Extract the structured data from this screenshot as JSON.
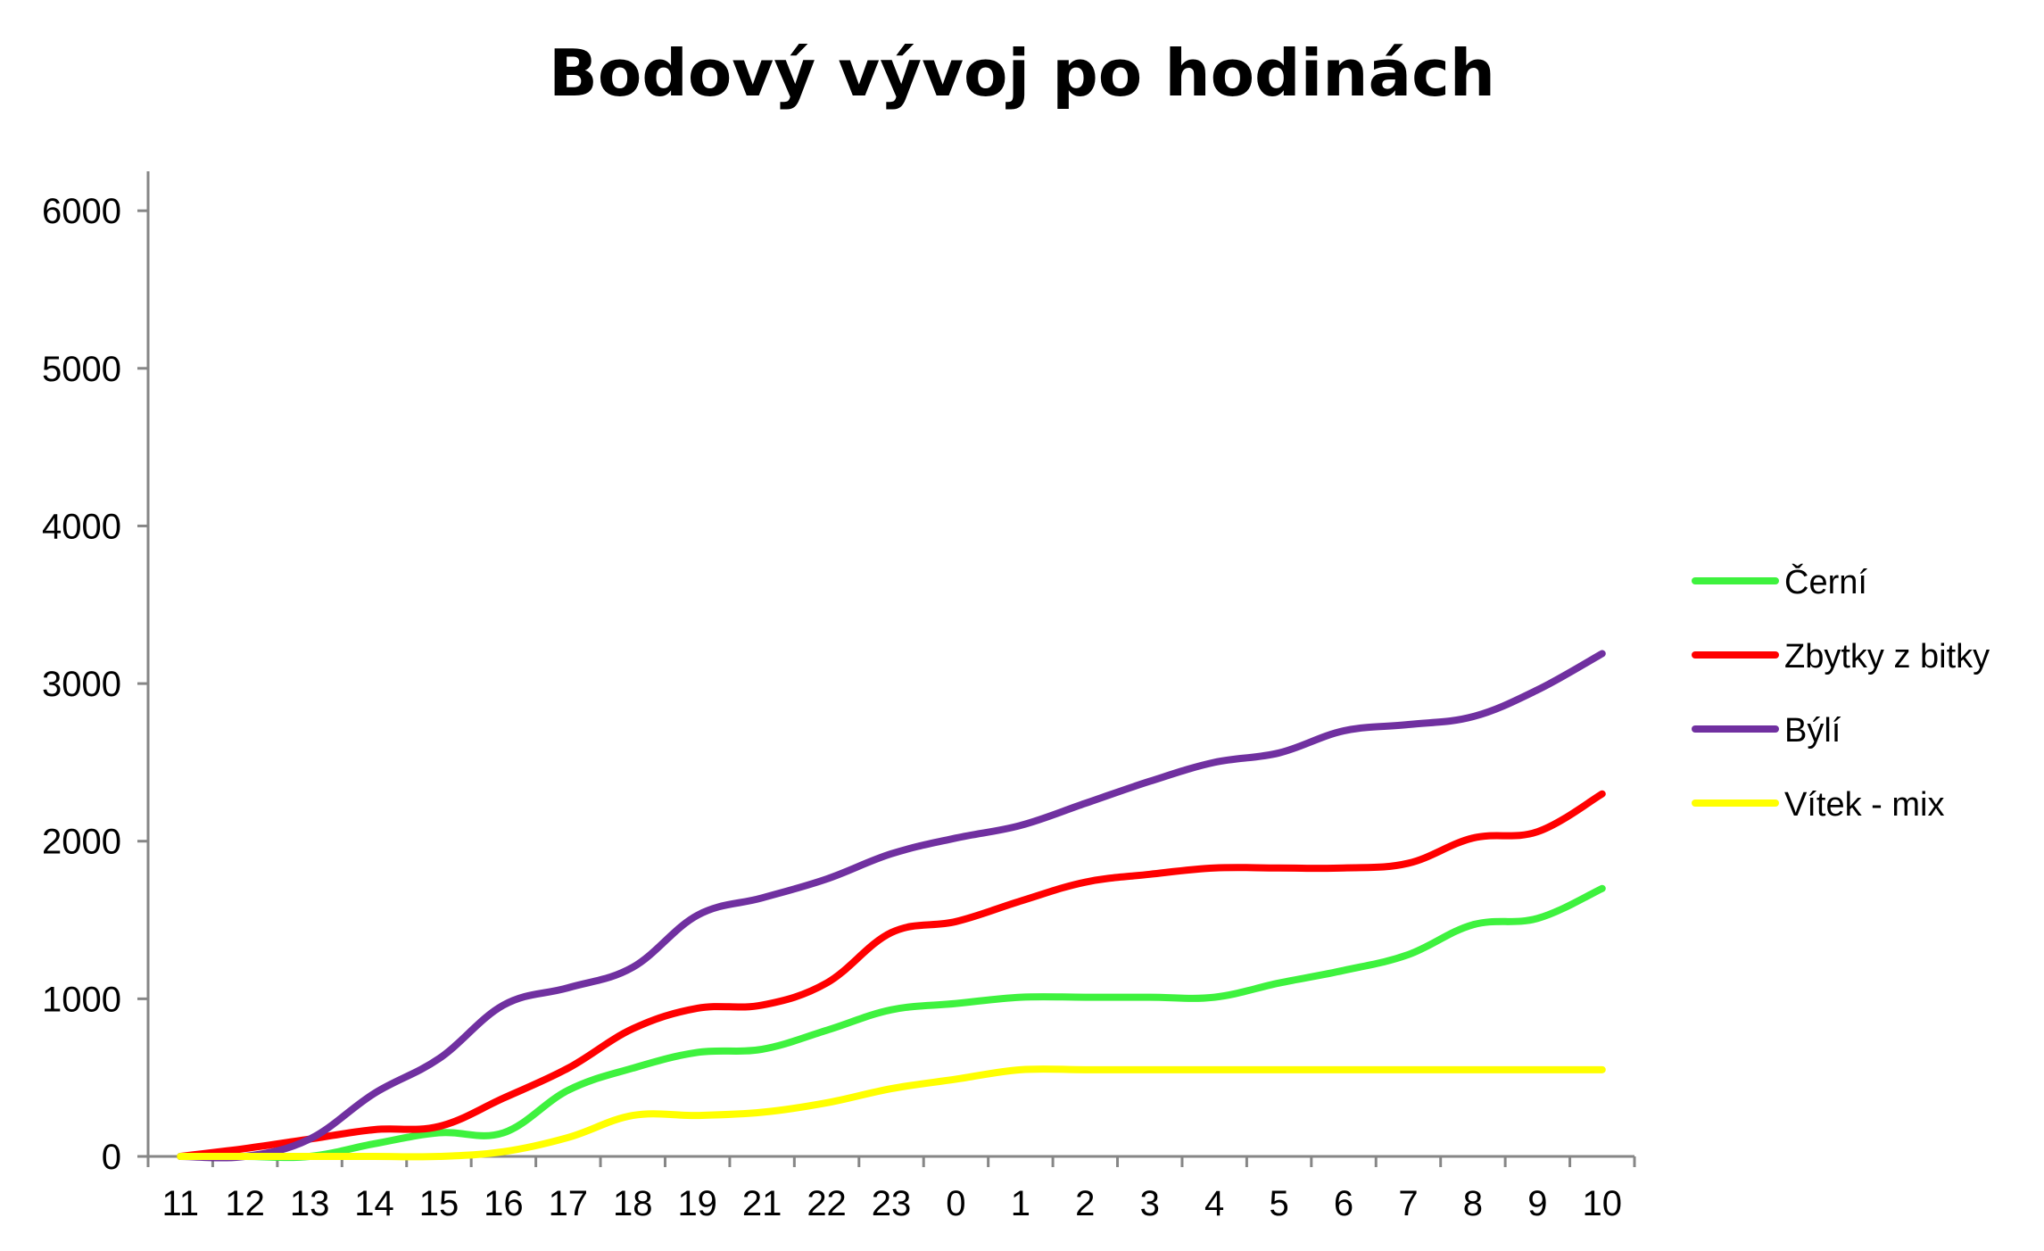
{
  "chart_data": {
    "type": "line",
    "title": "Bodový vývoj po hodinách",
    "xlabel": "",
    "ylabel": "",
    "categories": [
      "11",
      "12",
      "13",
      "14",
      "15",
      "16",
      "17",
      "18",
      "19",
      "21",
      "22",
      "23",
      "0",
      "1",
      "2",
      "3",
      "4",
      "5",
      "6",
      "7",
      "8",
      "9",
      "10"
    ],
    "ylim": [
      0,
      6250
    ],
    "yticks": [
      0,
      1000,
      2000,
      3000,
      4000,
      5000,
      6000
    ],
    "grid": false,
    "legend_position": "right",
    "series": [
      {
        "name": "Černí",
        "color": "#3ef23e",
        "values": [
          0,
          0,
          0,
          80,
          150,
          150,
          420,
          560,
          660,
          680,
          800,
          930,
          970,
          1010,
          1010,
          1010,
          1010,
          1100,
          1180,
          1280,
          1470,
          1510,
          1700
        ]
      },
      {
        "name": "Zbytky z bitky",
        "color": "#ff0000",
        "values": [
          0,
          50,
          110,
          170,
          190,
          370,
          560,
          810,
          940,
          960,
          1100,
          1420,
          1490,
          1620,
          1740,
          1790,
          1830,
          1830,
          1830,
          1860,
          2020,
          2060,
          2300
        ]
      },
      {
        "name": "Býlí",
        "color": "#7030a0",
        "values": [
          0,
          0,
          110,
          400,
          620,
          960,
          1070,
          1200,
          1530,
          1640,
          1760,
          1920,
          2020,
          2100,
          2240,
          2380,
          2500,
          2560,
          2700,
          2740,
          2790,
          2960,
          3190
        ]
      },
      {
        "name": "Vítek - mix",
        "color": "#ffff00",
        "values": [
          0,
          0,
          0,
          0,
          0,
          30,
          120,
          260,
          260,
          280,
          340,
          430,
          490,
          550,
          550,
          550,
          550,
          550,
          550,
          550,
          550,
          550,
          550
        ]
      }
    ]
  }
}
